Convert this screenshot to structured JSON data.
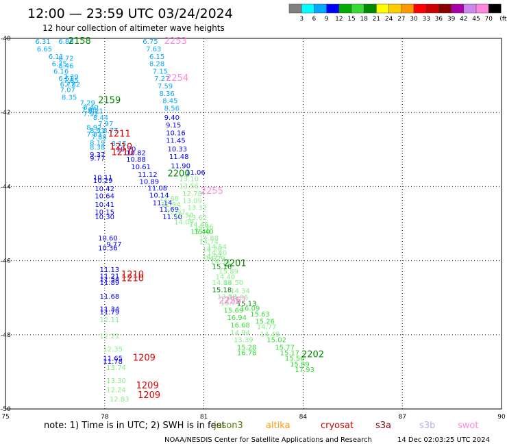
{
  "header": {
    "title": "12:00 — 23:59 UTC 03/24/2024",
    "subtitle": "12 hour collection of altimeter wave heights",
    "note": "note: 1) Time is in UTC; 2) SWH is in feet",
    "credit": "NOAA/NESDIS Center for Satellite Applications and Research",
    "timestamp": "14 Dec 02:03:25 UTC 2024"
  },
  "color_scale": {
    "unit": "(ft)",
    "labels": [
      "3",
      "6",
      "9",
      "12",
      "15",
      "18",
      "21",
      "24",
      "27",
      "30",
      "33",
      "36",
      "39",
      "42",
      "45",
      "70"
    ],
    "colors": [
      "#808080",
      "#00ffff",
      "#00aaff",
      "#0000ff",
      "#00aa00",
      "#33dd33",
      "#008800",
      "#ffff00",
      "#ffcc00",
      "#ff9900",
      "#ff0000",
      "#cc0000",
      "#880000",
      "#aa00aa",
      "#cc88ee",
      "#ff88dd",
      "#000000"
    ]
  },
  "legend": {
    "satellites": [
      {
        "name": "jason3",
        "color": "#557700"
      },
      {
        "name": "altika",
        "color": "#ff9900"
      },
      {
        "name": "cryosat",
        "color": "#cc0000"
      },
      {
        "name": "s3a",
        "color": "#880000"
      },
      {
        "name": "s3b",
        "color": "#bbaaee"
      },
      {
        "name": "swot",
        "color": "#ff88dd"
      }
    ]
  },
  "chart_data": {
    "type": "scatter",
    "title": "12:00 — 23:59 UTC 03/24/2024",
    "xlabel": "",
    "ylabel": "",
    "xlim": [
      75,
      90
    ],
    "ylim": [
      -50,
      -40
    ],
    "xticks": [
      "75",
      "78",
      "81",
      "84",
      "87",
      "90"
    ],
    "yticks": [
      "-40",
      "-42",
      "-44",
      "-46",
      "-48",
      "-50"
    ],
    "grid": true,
    "labels": [
      {
        "x": 75.9,
        "y": -40.15,
        "text": "6.31",
        "color": "#00aaff"
      },
      {
        "x": 76.6,
        "y": -40.15,
        "text": "6.86",
        "color": "#00aaff"
      },
      {
        "x": 75.95,
        "y": -40.35,
        "text": "6.65",
        "color": "#00aaff"
      },
      {
        "x": 76.3,
        "y": -40.55,
        "text": "6.11",
        "color": "#00aaff"
      },
      {
        "x": 76.6,
        "y": -40.6,
        "text": "8.72",
        "color": "#00aaff"
      },
      {
        "x": 76.4,
        "y": -40.75,
        "text": "6.75",
        "color": "#00aaff"
      },
      {
        "x": 76.6,
        "y": -40.8,
        "text": "8.46",
        "color": "#00aaff"
      },
      {
        "x": 76.45,
        "y": -40.95,
        "text": "6.16",
        "color": "#00aaff"
      },
      {
        "x": 76.75,
        "y": -41.1,
        "text": "7.39",
        "color": "#00aaff"
      },
      {
        "x": 76.6,
        "y": -41.15,
        "text": "6.51",
        "color": "#00aaff"
      },
      {
        "x": 76.75,
        "y": -41.2,
        "text": "7.85",
        "color": "#00aaff"
      },
      {
        "x": 76.65,
        "y": -41.3,
        "text": "6.77",
        "color": "#00aaff"
      },
      {
        "x": 76.8,
        "y": -41.3,
        "text": "7.82",
        "color": "#00aaff"
      },
      {
        "x": 76.65,
        "y": -41.45,
        "text": "7.07",
        "color": "#00aaff"
      },
      {
        "x": 76.7,
        "y": -41.65,
        "text": "8.35",
        "color": "#00aaff"
      },
      {
        "x": 77.25,
        "y": -41.8,
        "text": "7.29",
        "color": "#00aaff"
      },
      {
        "x": 77.35,
        "y": -41.92,
        "text": "8.40",
        "color": "#00aaff"
      },
      {
        "x": 77.3,
        "y": -42.0,
        "text": "7.86",
        "color": "#00aaff"
      },
      {
        "x": 77.5,
        "y": -42.02,
        "text": "8.21",
        "color": "#00aaff"
      },
      {
        "x": 77.35,
        "y": -42.1,
        "text": "7.92",
        "color": "#00aaff"
      },
      {
        "x": 77.65,
        "y": -42.2,
        "text": "8.44",
        "color": "#00aaff"
      },
      {
        "x": 77.8,
        "y": -42.37,
        "text": "7.97",
        "color": "#00aaff"
      },
      {
        "x": 77.45,
        "y": -42.47,
        "text": "8.92",
        "color": "#00aaff"
      },
      {
        "x": 77.95,
        "y": -42.55,
        "text": "8.77",
        "color": "#00aaff"
      },
      {
        "x": 77.55,
        "y": -42.55,
        "text": "8.91",
        "color": "#00aaff"
      },
      {
        "x": 77.45,
        "y": -42.65,
        "text": "7.83",
        "color": "#00aaff"
      },
      {
        "x": 77.6,
        "y": -42.73,
        "text": "7.88",
        "color": "#00aaff"
      },
      {
        "x": 77.55,
        "y": -42.88,
        "text": "8.19",
        "color": "#00aaff"
      },
      {
        "x": 78.2,
        "y": -42.9,
        "text": "8.15",
        "color": "#00aaff"
      },
      {
        "x": 77.55,
        "y": -43.0,
        "text": "8.38",
        "color": "#00aaff"
      },
      {
        "x": 77.55,
        "y": -43.2,
        "text": "9.37",
        "color": "#0000ff"
      },
      {
        "x": 77.55,
        "y": -43.3,
        "text": "9.77",
        "color": "#0000ff"
      },
      {
        "x": 77.65,
        "y": -43.82,
        "text": "10.11",
        "color": "#0000ff"
      },
      {
        "x": 77.65,
        "y": -43.9,
        "text": "10.29",
        "color": "#0000ff"
      },
      {
        "x": 77.7,
        "y": -44.12,
        "text": "10.42",
        "color": "#0000ff"
      },
      {
        "x": 77.7,
        "y": -44.32,
        "text": "10.64",
        "color": "#0000ff"
      },
      {
        "x": 77.7,
        "y": -44.55,
        "text": "10.41",
        "color": "#0000ff"
      },
      {
        "x": 77.7,
        "y": -44.75,
        "text": "10.15",
        "color": "#0000ff"
      },
      {
        "x": 77.7,
        "y": -44.88,
        "text": "10.30",
        "color": "#0000ff"
      },
      {
        "x": 77.8,
        "y": -45.45,
        "text": "10.60",
        "color": "#0000ff"
      },
      {
        "x": 78.05,
        "y": -45.62,
        "text": "9.77",
        "color": "#0000ff"
      },
      {
        "x": 77.8,
        "y": -45.72,
        "text": "10.36",
        "color": "#0000ff"
      },
      {
        "x": 77.85,
        "y": -46.3,
        "text": "11.13",
        "color": "#0000ff"
      },
      {
        "x": 77.85,
        "y": -46.48,
        "text": "11.21",
        "color": "#0000ff"
      },
      {
        "x": 77.85,
        "y": -46.56,
        "text": "11.54",
        "color": "#0000ff"
      },
      {
        "x": 77.85,
        "y": -46.65,
        "text": "11.89",
        "color": "#0000ff"
      },
      {
        "x": 77.85,
        "y": -47.02,
        "text": "11.68",
        "color": "#0000ff"
      },
      {
        "x": 77.85,
        "y": -47.37,
        "text": "11.34",
        "color": "#0000ff"
      },
      {
        "x": 77.85,
        "y": -47.45,
        "text": "11.79",
        "color": "#0000ff"
      },
      {
        "x": 77.85,
        "y": -47.65,
        "text": "12.11",
        "color": "#88ee88"
      },
      {
        "x": 77.85,
        "y": -48.1,
        "text": "12.21",
        "color": "#88ee88"
      },
      {
        "x": 77.95,
        "y": -48.45,
        "text": "12.35",
        "color": "#88ee88"
      },
      {
        "x": 77.95,
        "y": -48.7,
        "text": "11.65",
        "color": "#0000ff"
      },
      {
        "x": 77.95,
        "y": -48.78,
        "text": "11.78",
        "color": "#0000ff"
      },
      {
        "x": 78.05,
        "y": -48.95,
        "text": "13.74",
        "color": "#88ee88"
      },
      {
        "x": 78.05,
        "y": -49.3,
        "text": "13.30",
        "color": "#88ee88"
      },
      {
        "x": 78.05,
        "y": -49.55,
        "text": "12.24",
        "color": "#88ee88"
      },
      {
        "x": 78.15,
        "y": -49.8,
        "text": "12.83",
        "color": "#88ee88"
      },
      {
        "x": 78.35,
        "y": -43.05,
        "text": "10.70",
        "color": "#0000ff"
      },
      {
        "x": 78.65,
        "y": -43.15,
        "text": "10.82",
        "color": "#0000ff"
      },
      {
        "x": 78.65,
        "y": -43.33,
        "text": "10.88",
        "color": "#0000ff"
      },
      {
        "x": 78.8,
        "y": -43.53,
        "text": "10.61",
        "color": "#0000ff"
      },
      {
        "x": 79.0,
        "y": -43.73,
        "text": "11.12",
        "color": "#0000ff"
      },
      {
        "x": 79.05,
        "y": -43.93,
        "text": "10.89",
        "color": "#0000ff"
      },
      {
        "x": 79.3,
        "y": -44.1,
        "text": "11.08",
        "color": "#0000ff"
      },
      {
        "x": 79.35,
        "y": -44.3,
        "text": "10.14",
        "color": "#0000ff"
      },
      {
        "x": 79.45,
        "y": -44.5,
        "text": "11.14",
        "color": "#0000ff"
      },
      {
        "x": 79.65,
        "y": -44.68,
        "text": "11.69",
        "color": "#0000ff"
      },
      {
        "x": 79.75,
        "y": -44.88,
        "text": "11.50",
        "color": "#0000ff"
      },
      {
        "x": 79.15,
        "y": -40.15,
        "text": "6.75",
        "color": "#00aaff"
      },
      {
        "x": 79.25,
        "y": -40.35,
        "text": "7.63",
        "color": "#00aaff"
      },
      {
        "x": 79.35,
        "y": -40.55,
        "text": "6.15",
        "color": "#00aaff"
      },
      {
        "x": 79.35,
        "y": -40.75,
        "text": "8.28",
        "color": "#00aaff"
      },
      {
        "x": 79.45,
        "y": -40.95,
        "text": "7.15",
        "color": "#00aaff"
      },
      {
        "x": 79.5,
        "y": -41.15,
        "text": "7.27",
        "color": "#00aaff"
      },
      {
        "x": 79.6,
        "y": -41.35,
        "text": "7.59",
        "color": "#00aaff"
      },
      {
        "x": 79.65,
        "y": -41.55,
        "text": "8.36",
        "color": "#00aaff"
      },
      {
        "x": 79.75,
        "y": -41.75,
        "text": "8.45",
        "color": "#00aaff"
      },
      {
        "x": 79.8,
        "y": -41.95,
        "text": "8.56",
        "color": "#00aaff"
      },
      {
        "x": 79.8,
        "y": -42.2,
        "text": "9.40",
        "color": "#0000ff"
      },
      {
        "x": 79.85,
        "y": -42.4,
        "text": "9.15",
        "color": "#0000ff"
      },
      {
        "x": 79.85,
        "y": -42.62,
        "text": "10.16",
        "color": "#0000ff"
      },
      {
        "x": 79.85,
        "y": -42.82,
        "text": "11.45",
        "color": "#0000ff"
      },
      {
        "x": 79.9,
        "y": -43.05,
        "text": "10.33",
        "color": "#0000ff"
      },
      {
        "x": 79.95,
        "y": -43.25,
        "text": "11.48",
        "color": "#0000ff"
      },
      {
        "x": 80.0,
        "y": -43.5,
        "text": "11.90",
        "color": "#0000ff"
      },
      {
        "x": 80.45,
        "y": -43.68,
        "text": "11.06",
        "color": "#0000ff"
      },
      {
        "x": 80.25,
        "y": -43.85,
        "text": "13.10",
        "color": "#88ee88"
      },
      {
        "x": 80.25,
        "y": -44.05,
        "text": "13.56",
        "color": "#88ee88"
      },
      {
        "x": 80.35,
        "y": -44.25,
        "text": "12.78",
        "color": "#88ee88"
      },
      {
        "x": 79.65,
        "y": -44.38,
        "text": "12.68",
        "color": "#88ee88"
      },
      {
        "x": 80.35,
        "y": -44.45,
        "text": "13.09",
        "color": "#88ee88"
      },
      {
        "x": 79.7,
        "y": -44.55,
        "text": "12.94",
        "color": "#88ee88"
      },
      {
        "x": 80.5,
        "y": -44.63,
        "text": "13.32",
        "color": "#88ee88"
      },
      {
        "x": 79.85,
        "y": -44.75,
        "text": "12.97",
        "color": "#88ee88"
      },
      {
        "x": 80.1,
        "y": -44.83,
        "text": "13.50",
        "color": "#88ee88"
      },
      {
        "x": 80.5,
        "y": -44.9,
        "text": "13.62",
        "color": "#88ee88"
      },
      {
        "x": 80.1,
        "y": -45.02,
        "text": "14.09",
        "color": "#88ee88"
      },
      {
        "x": 80.55,
        "y": -45.08,
        "text": "14.46",
        "color": "#88ee88"
      },
      {
        "x": 80.7,
        "y": -45.15,
        "text": "14.96",
        "color": "#88ee88"
      },
      {
        "x": 80.6,
        "y": -45.28,
        "text": "15.40",
        "color": "#33dd33"
      },
      {
        "x": 80.7,
        "y": -45.28,
        "text": "15.40",
        "color": "#33dd33"
      },
      {
        "x": 80.85,
        "y": -45.45,
        "text": "14.88",
        "color": "#88ee88"
      },
      {
        "x": 80.85,
        "y": -45.55,
        "text": "14.74",
        "color": "#88ee88"
      },
      {
        "x": 81.1,
        "y": -45.68,
        "text": "14.54",
        "color": "#88ee88"
      },
      {
        "x": 80.95,
        "y": -45.75,
        "text": "14.20",
        "color": "#88ee88"
      },
      {
        "x": 81.1,
        "y": -45.85,
        "text": "14.40",
        "color": "#88ee88"
      },
      {
        "x": 80.95,
        "y": -45.95,
        "text": "14.97",
        "color": "#88ee88"
      },
      {
        "x": 81.05,
        "y": -46.0,
        "text": "14.29",
        "color": "#88ee88"
      },
      {
        "x": 81.2,
        "y": -46.08,
        "text": "14.34",
        "color": "#88ee88"
      },
      {
        "x": 81.25,
        "y": -46.22,
        "text": "15.16",
        "color": "#008800"
      },
      {
        "x": 81.45,
        "y": -46.35,
        "text": "15.89",
        "color": "#88ee88"
      },
      {
        "x": 81.35,
        "y": -46.5,
        "text": "14.40",
        "color": "#88ee88"
      },
      {
        "x": 81.25,
        "y": -46.65,
        "text": "14.88",
        "color": "#88ee88"
      },
      {
        "x": 81.6,
        "y": -46.65,
        "text": "14.50",
        "color": "#88ee88"
      },
      {
        "x": 81.25,
        "y": -46.85,
        "text": "15.18",
        "color": "#008800"
      },
      {
        "x": 81.8,
        "y": -46.88,
        "text": "14.34",
        "color": "#88ee88"
      },
      {
        "x": 81.4,
        "y": -47.03,
        "text": "13.96",
        "color": "#88ee88"
      },
      {
        "x": 81.75,
        "y": -47.05,
        "text": "14.86",
        "color": "#88ee88"
      },
      {
        "x": 81.5,
        "y": -47.2,
        "text": "13.74",
        "color": "#88ee88"
      },
      {
        "x": 82.0,
        "y": -47.22,
        "text": "15.13",
        "color": "#008800"
      },
      {
        "x": 81.6,
        "y": -47.4,
        "text": "15.69",
        "color": "#33dd33"
      },
      {
        "x": 82.1,
        "y": -47.35,
        "text": "16.09",
        "color": "#33dd33"
      },
      {
        "x": 82.4,
        "y": -47.5,
        "text": "15.63",
        "color": "#33dd33"
      },
      {
        "x": 81.7,
        "y": -47.6,
        "text": "16.94",
        "color": "#33dd33"
      },
      {
        "x": 82.55,
        "y": -47.7,
        "text": "15.26",
        "color": "#33dd33"
      },
      {
        "x": 81.8,
        "y": -47.8,
        "text": "16.68",
        "color": "#33dd33"
      },
      {
        "x": 82.6,
        "y": -47.85,
        "text": "14.77",
        "color": "#88ee88"
      },
      {
        "x": 81.8,
        "y": -48.0,
        "text": "14.94",
        "color": "#88ee88"
      },
      {
        "x": 82.7,
        "y": -48.05,
        "text": "14.48",
        "color": "#88ee88"
      },
      {
        "x": 81.9,
        "y": -48.2,
        "text": "13.39",
        "color": "#88ee88"
      },
      {
        "x": 82.9,
        "y": -48.2,
        "text": "15.02",
        "color": "#33dd33"
      },
      {
        "x": 82.0,
        "y": -48.4,
        "text": "15.28",
        "color": "#33dd33"
      },
      {
        "x": 83.15,
        "y": -48.4,
        "text": "15.77",
        "color": "#33dd33"
      },
      {
        "x": 82.0,
        "y": -48.55,
        "text": "16.78",
        "color": "#33dd33"
      },
      {
        "x": 83.3,
        "y": -48.55,
        "text": "15.17",
        "color": "#33dd33"
      },
      {
        "x": 83.45,
        "y": -48.7,
        "text": "15.56",
        "color": "#33dd33"
      },
      {
        "x": 83.6,
        "y": -48.85,
        "text": "15.89",
        "color": "#33dd33"
      },
      {
        "x": 83.75,
        "y": -49.0,
        "text": "17.93",
        "color": "#33dd33"
      },
      {
        "x": 76.9,
        "y": -40.15,
        "text": "2158",
        "color": "#008800",
        "pass": true
      },
      {
        "x": 77.8,
        "y": -41.75,
        "text": "2159",
        "color": "#008800",
        "pass": true
      },
      {
        "x": 79.9,
        "y": -43.72,
        "text": "2200",
        "color": "#008800",
        "pass": true
      },
      {
        "x": 81.6,
        "y": -46.15,
        "text": "2201",
        "color": "#008800",
        "pass": true
      },
      {
        "x": 83.95,
        "y": -48.6,
        "text": "2202",
        "color": "#008800",
        "pass": true
      },
      {
        "x": 79.8,
        "y": -40.15,
        "text": "2253",
        "color": "#ff88dd",
        "pass": true
      },
      {
        "x": 79.85,
        "y": -41.15,
        "text": "2254",
        "color": "#ff88dd",
        "pass": true
      },
      {
        "x": 80.9,
        "y": -44.2,
        "text": "2255",
        "color": "#ff88dd",
        "pass": true
      },
      {
        "x": 81.45,
        "y": -47.15,
        "text": "2256",
        "color": "#ff88dd",
        "pass": true
      },
      {
        "x": 81.6,
        "y": -47.15,
        "text": "2257",
        "color": "#ff88dd",
        "pass": true
      },
      {
        "x": 78.1,
        "y": -42.65,
        "text": "1211",
        "color": "#dd0000",
        "pass": true
      },
      {
        "x": 78.15,
        "y": -43.0,
        "text": "1210",
        "color": "#dd0000",
        "pass": true
      },
      {
        "x": 78.2,
        "y": -43.15,
        "text": "1210",
        "color": "#dd0000",
        "pass": true
      },
      {
        "x": 78.5,
        "y": -46.45,
        "text": "1210",
        "color": "#dd0000",
        "pass": true
      },
      {
        "x": 78.5,
        "y": -46.55,
        "text": "1210",
        "color": "#dd0000",
        "pass": true
      },
      {
        "x": 78.85,
        "y": -48.7,
        "text": "1209",
        "color": "#dd0000",
        "pass": true
      },
      {
        "x": 78.95,
        "y": -49.45,
        "text": "1209",
        "color": "#dd0000",
        "pass": true
      },
      {
        "x": 79.0,
        "y": -49.7,
        "text": "1209",
        "color": "#dd0000",
        "pass": true
      }
    ]
  }
}
